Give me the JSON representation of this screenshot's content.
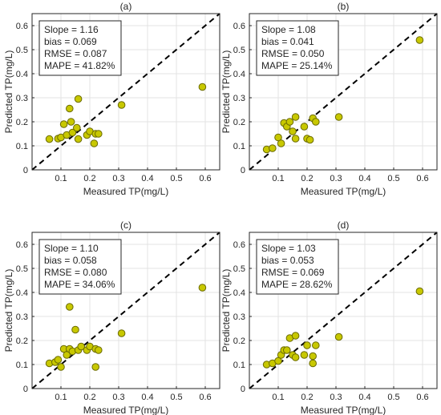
{
  "shared": {
    "xlabel": "Measured TP(mg/L)",
    "ylabel": "Predicted TP(mg/L)",
    "xticks": [
      "0.1",
      "0.2",
      "0.3",
      "0.4",
      "0.5",
      "0.6"
    ],
    "yticks": [
      "0",
      "0.1",
      "0.2",
      "0.3",
      "0.4",
      "0.5",
      "0.6"
    ],
    "xlim": [
      0,
      0.65
    ],
    "ylim": [
      0,
      0.65
    ],
    "grid": true,
    "marker_fill": "#c8c800",
    "marker_edge": "#6b6b00",
    "reference_line": "1:1 dashed black"
  },
  "chart_data": [
    {
      "type": "scatter",
      "panel_label": "(a)",
      "stats": [
        "Slope = 1.16",
        "bias = 0.069",
        "RMSE = 0.087",
        "MAPE = 41.82%"
      ],
      "xlabel": "Measured TP(mg/L)",
      "ylabel": "Predicted TP(mg/L)",
      "xlim": [
        0,
        0.65
      ],
      "ylim": [
        0,
        0.65
      ],
      "points": [
        [
          0.06,
          0.128
        ],
        [
          0.09,
          0.13
        ],
        [
          0.1,
          0.135
        ],
        [
          0.11,
          0.19
        ],
        [
          0.12,
          0.145
        ],
        [
          0.13,
          0.255
        ],
        [
          0.135,
          0.2
        ],
        [
          0.14,
          0.155
        ],
        [
          0.155,
          0.175
        ],
        [
          0.16,
          0.295
        ],
        [
          0.16,
          0.128
        ],
        [
          0.19,
          0.145
        ],
        [
          0.2,
          0.16
        ],
        [
          0.215,
          0.11
        ],
        [
          0.22,
          0.15
        ],
        [
          0.23,
          0.15
        ],
        [
          0.31,
          0.27
        ],
        [
          0.59,
          0.345
        ]
      ]
    },
    {
      "type": "scatter",
      "panel_label": "(b)",
      "stats": [
        "Slope = 1.08",
        "bias = 0.041",
        "RMSE = 0.050",
        "MAPE = 25.14%"
      ],
      "xlabel": "Measured TP(mg/L)",
      "ylabel": "Predicted TP(mg/L)",
      "xlim": [
        0,
        0.65
      ],
      "ylim": [
        0,
        0.65
      ],
      "points": [
        [
          0.06,
          0.085
        ],
        [
          0.08,
          0.09
        ],
        [
          0.1,
          0.135
        ],
        [
          0.11,
          0.11
        ],
        [
          0.12,
          0.195
        ],
        [
          0.13,
          0.18
        ],
        [
          0.14,
          0.2
        ],
        [
          0.15,
          0.16
        ],
        [
          0.16,
          0.13
        ],
        [
          0.16,
          0.22
        ],
        [
          0.19,
          0.18
        ],
        [
          0.2,
          0.13
        ],
        [
          0.21,
          0.125
        ],
        [
          0.22,
          0.215
        ],
        [
          0.23,
          0.2
        ],
        [
          0.31,
          0.22
        ],
        [
          0.59,
          0.54
        ]
      ]
    },
    {
      "type": "scatter",
      "panel_label": "(c)",
      "stats": [
        "Slope = 1.10",
        "bias = 0.058",
        "RMSE = 0.080",
        "MAPE = 34.06%"
      ],
      "xlabel": "Measured TP(mg/L)",
      "ylabel": "Predicted TP(mg/L)",
      "xlim": [
        0,
        0.65
      ],
      "ylim": [
        0,
        0.65
      ],
      "points": [
        [
          0.06,
          0.105
        ],
        [
          0.08,
          0.11
        ],
        [
          0.09,
          0.12
        ],
        [
          0.1,
          0.09
        ],
        [
          0.11,
          0.165
        ],
        [
          0.12,
          0.14
        ],
        [
          0.13,
          0.34
        ],
        [
          0.13,
          0.165
        ],
        [
          0.14,
          0.155
        ],
        [
          0.15,
          0.245
        ],
        [
          0.16,
          0.16
        ],
        [
          0.17,
          0.175
        ],
        [
          0.19,
          0.16
        ],
        [
          0.2,
          0.175
        ],
        [
          0.22,
          0.165
        ],
        [
          0.22,
          0.09
        ],
        [
          0.23,
          0.16
        ],
        [
          0.31,
          0.23
        ],
        [
          0.59,
          0.42
        ]
      ]
    },
    {
      "type": "scatter",
      "panel_label": "(d)",
      "stats": [
        "Slope = 1.03",
        "bias = 0.053",
        "RMSE = 0.069",
        "MAPE = 28.62%"
      ],
      "xlabel": "Measured TP(mg/L)",
      "ylabel": "Predicted TP(mg/L)",
      "xlim": [
        0,
        0.65
      ],
      "ylim": [
        0,
        0.65
      ],
      "points": [
        [
          0.06,
          0.1
        ],
        [
          0.08,
          0.105
        ],
        [
          0.1,
          0.115
        ],
        [
          0.11,
          0.14
        ],
        [
          0.12,
          0.16
        ],
        [
          0.13,
          0.16
        ],
        [
          0.14,
          0.21
        ],
        [
          0.15,
          0.14
        ],
        [
          0.16,
          0.22
        ],
        [
          0.16,
          0.13
        ],
        [
          0.19,
          0.14
        ],
        [
          0.2,
          0.18
        ],
        [
          0.22,
          0.105
        ],
        [
          0.22,
          0.135
        ],
        [
          0.23,
          0.18
        ],
        [
          0.31,
          0.215
        ],
        [
          0.59,
          0.405
        ]
      ]
    }
  ]
}
